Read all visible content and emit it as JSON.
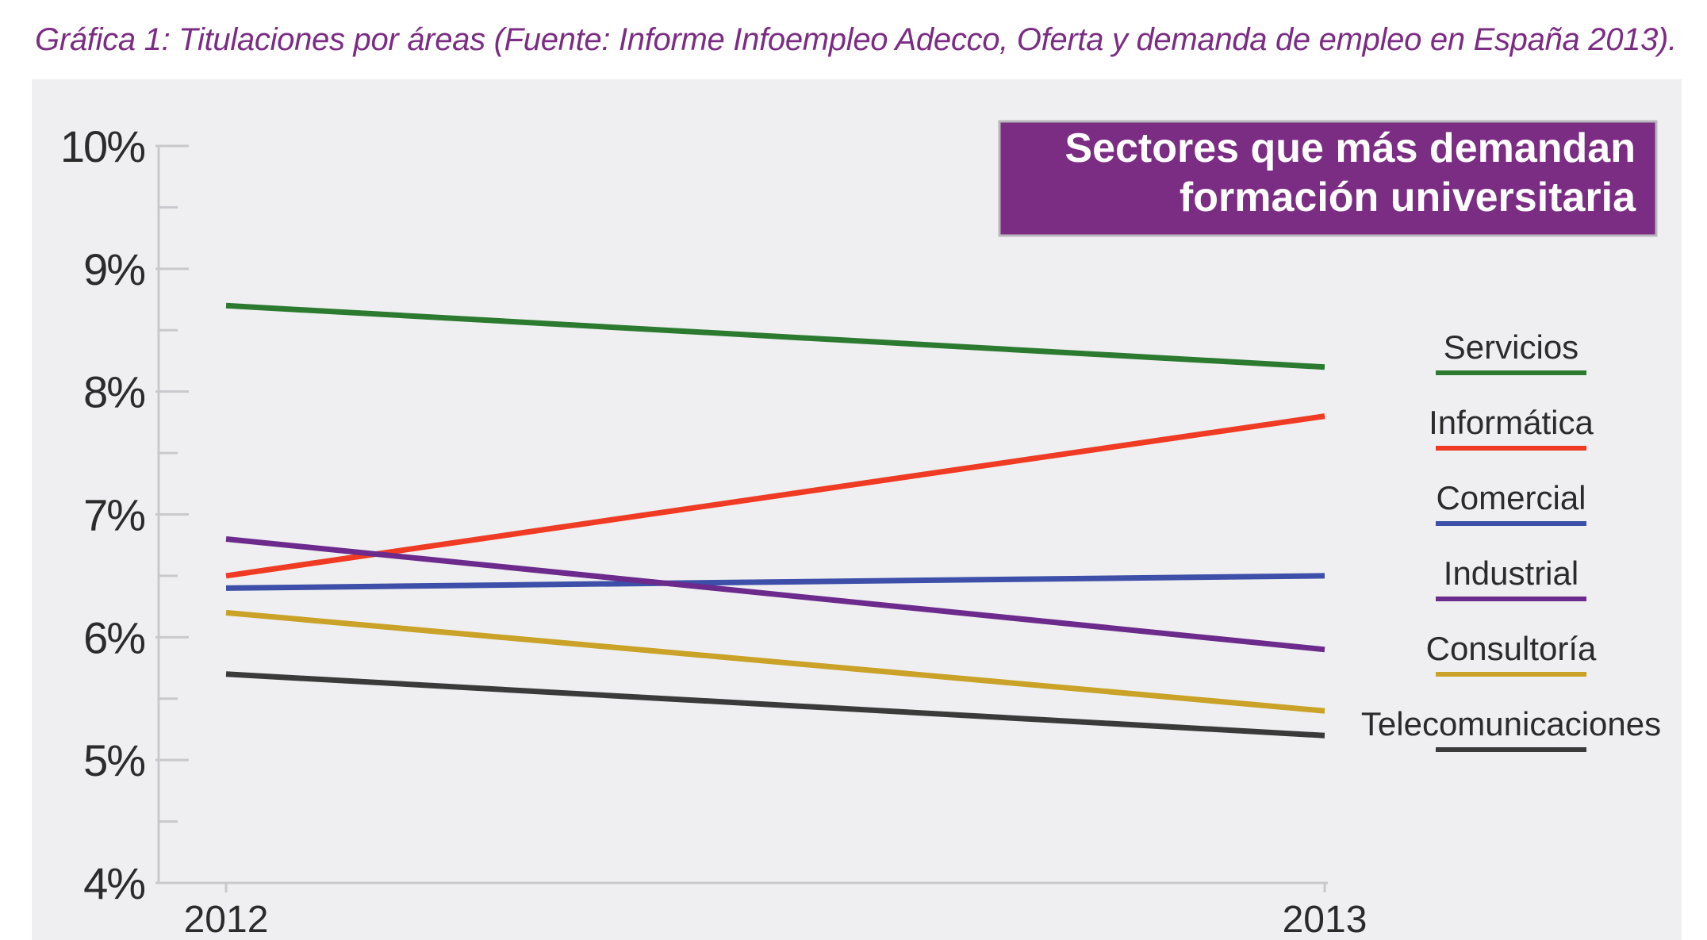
{
  "caption": "Gráfica 1: Titulaciones por áreas (Fuente: Informe Infoempleo Adecco, Oferta y demanda de empleo en España 2013).",
  "chart_data": {
    "type": "line",
    "title_lines": [
      "Sectores que más demandan",
      "formación universitaria"
    ],
    "title_bg_color": "#7b2c83",
    "x": [
      "2012",
      "2013"
    ],
    "ylim": [
      4,
      10
    ],
    "y_ticks": [
      "4%",
      "5%",
      "6%",
      "7%",
      "8%",
      "9%",
      "10%"
    ],
    "series": [
      {
        "name": "Servicios",
        "color": "#2b7a2f",
        "values": [
          8.7,
          8.2
        ]
      },
      {
        "name": "Informática",
        "color": "#ef3b24",
        "values": [
          6.5,
          7.8
        ]
      },
      {
        "name": "Comercial",
        "color": "#3d4fa8",
        "values": [
          6.4,
          6.5
        ]
      },
      {
        "name": "Industrial",
        "color": "#6c2a8c",
        "values": [
          6.8,
          5.9
        ]
      },
      {
        "name": "Consultoría",
        "color": "#c9a227",
        "values": [
          6.2,
          5.4
        ]
      },
      {
        "name": "Telecomunicaciones",
        "color": "#3a3a3a",
        "values": [
          5.7,
          5.2
        ]
      }
    ]
  }
}
